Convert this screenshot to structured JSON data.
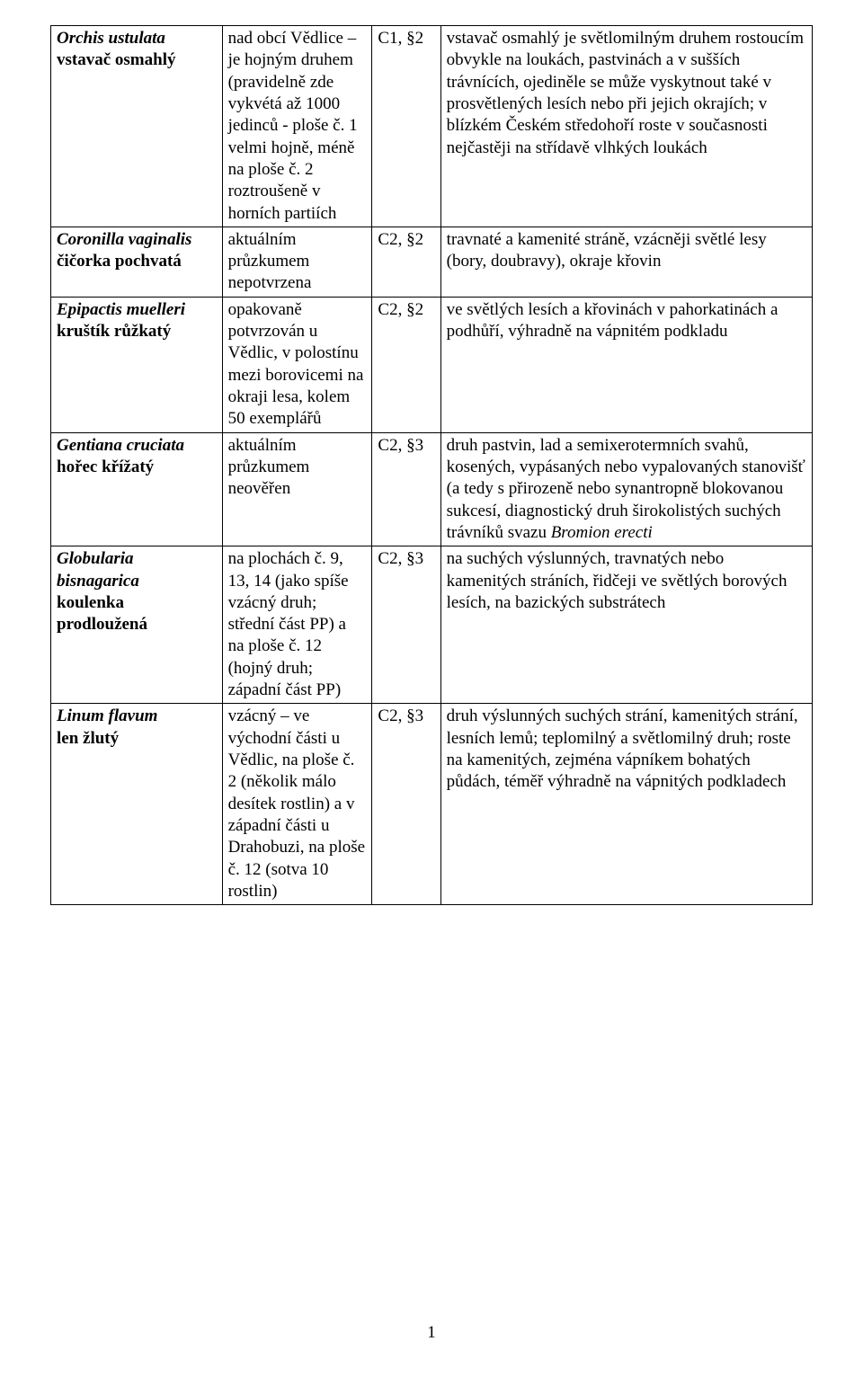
{
  "page_number": "1",
  "rows": [
    {
      "latin": "Orchis ustulata",
      "cz": "vstavač osmahlý",
      "occ": "nad obcí Vědlice – je hojným druhem (pravidelně zde vykvétá až 1000 jedinců - ploše č. 1 velmi hojně, méně na ploše č. 2 roztroušeně v horních partiích",
      "cat": "C1, §2",
      "hab": "vstavač osmahlý je světlomilným druhem rostoucím obvykle na loukách, pastvinách a v sušších trávnících, ojediněle se může vyskytnout také v prosvětlených lesích nebo při jejich okrajích; v blízkém Českém středohoří roste v současnosti nejčastěji na střídavě vlhkých loukách"
    },
    {
      "latin": "Coronilla vaginalis",
      "cz": "čičorka pochvatá",
      "occ": "aktuálním průzkumem nepotvrzena",
      "cat": "C2, §2",
      "hab": "travnaté a kamenité stráně, vzácněji světlé lesy (bory, doubravy), okraje křovin"
    },
    {
      "latin": "Epipactis muelleri",
      "cz": "kruštík růžkatý",
      "occ": "opakovaně potvrzován u Vědlic, v polostínu mezi borovicemi na okraji lesa, kolem 50 exemplářů",
      "cat": "C2, §2",
      "hab": "ve světlých lesích a křovinách v pahorkatinách a podhůří, výhradně na vápnitém podkladu"
    },
    {
      "latin": "Gentiana cruciata",
      "cz": "hořec křížatý",
      "occ": "aktuálním průzkumem neověřen",
      "cat": "C2, §3",
      "hab_pre": "druh pastvin, lad a semixerotermních svahů, kosených, vypásaných nebo vypalovaných stanovišť (a tedy s přirozeně nebo synantropně blokovanou sukcesí, diagnostický druh širokolistých suchých trávníků svazu ",
      "hab_it": "Bromion erecti"
    },
    {
      "latin": "Globularia bisnagarica",
      "cz": "koulenka prodloužená",
      "occ": "na plochách č. 9, 13, 14 (jako spíše vzácný druh; střední část PP) a na ploše č. 12 (hojný druh; západní část PP)",
      "cat": "C2, §3",
      "hab": "na suchých výslunných, travnatých nebo kamenitých stráních, řidčeji ve světlých borových lesích, na bazických substrátech"
    },
    {
      "latin": "Linum flavum",
      "cz": "len žlutý",
      "occ": "vzácný – ve východní části u Vědlic, na ploše č. 2 (několik málo desítek rostlin) a v západní části u Drahobuzi, na ploše č. 12 (sotva 10 rostlin)",
      "cat": "C2, §3",
      "hab": "druh výslunných suchých strání, kamenitých strání, lesních lemů; teplomilný a světlomilný druh; roste na kamenitých, zejména vápníkem bohatých půdách, téměř výhradně na vápnitých podkladech"
    }
  ]
}
